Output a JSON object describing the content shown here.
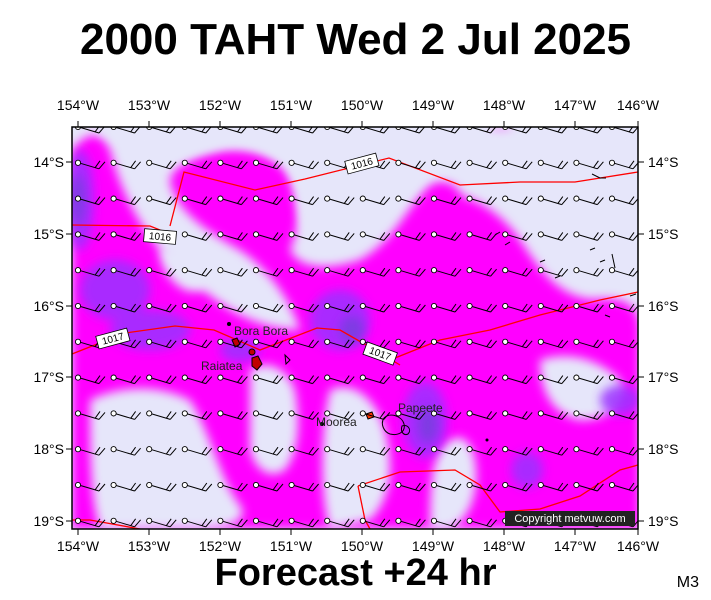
{
  "title": "2000 TAHT Wed 2 Jul 2025",
  "footer": "Forecast +24 hr",
  "model_code": "M3",
  "copyright": "Copyright metvuw.com",
  "axes": {
    "lon_labels": [
      "154°W",
      "153°W",
      "152°W",
      "151°W",
      "150°W",
      "149°W",
      "148°W",
      "147°W",
      "146°W"
    ],
    "lat_labels": [
      "14°S",
      "15°S",
      "16°S",
      "17°S",
      "18°S",
      "19°S"
    ]
  },
  "places": [
    {
      "name": "Bora Bora"
    },
    {
      "name": "Raiatea"
    },
    {
      "name": "Moorea"
    },
    {
      "name": "Papeete"
    }
  ],
  "isobar_labels": [
    "1016",
    "1016",
    "1017",
    "1017"
  ],
  "colors": {
    "background": "#e6e6fa",
    "precip_light": "#ff00ff",
    "precip_medium": "#9b30ff",
    "precip_heavy": "#7a3de0",
    "isobar": "#ff0000",
    "land": "#000000"
  }
}
